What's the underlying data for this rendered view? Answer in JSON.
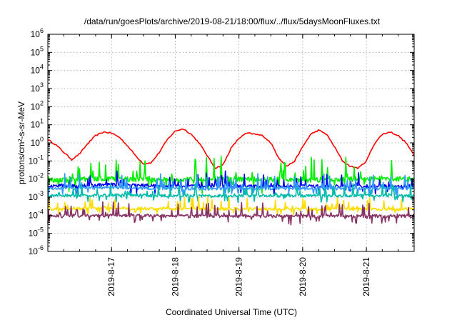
{
  "chart_data": {
    "type": "line",
    "title": "/data/run/goesPlots/archive/2019-08-21/18:00/flux/../flux/5daysMoonFluxes.txt",
    "xlabel": "Coordinated Universal Time (UTC)",
    "ylabel": "protons/cm²-s-sr-MeV",
    "y_scale": "log",
    "ylim": [
      1e-06,
      1000000.0
    ],
    "y_ticks": [
      {
        "base": "10",
        "exp": "-6"
      },
      {
        "base": "10",
        "exp": "-5"
      },
      {
        "base": "10",
        "exp": "-4"
      },
      {
        "base": "10",
        "exp": "-3"
      },
      {
        "base": "10",
        "exp": "-2"
      },
      {
        "base": "10",
        "exp": "-1"
      },
      {
        "base": "10",
        "exp": "0"
      },
      {
        "base": "10",
        "exp": "1"
      },
      {
        "base": "10",
        "exp": "2"
      },
      {
        "base": "10",
        "exp": "3"
      },
      {
        "base": "10",
        "exp": "4"
      },
      {
        "base": "10",
        "exp": "5"
      },
      {
        "base": "10",
        "exp": "6"
      }
    ],
    "xlim": [
      "2019-08-16 00:00",
      "2019-08-21 18:00"
    ],
    "x_ticks": [
      "2019-8-17",
      "2019-8-18",
      "2019-8-19",
      "2019-8-20",
      "2019-8-21"
    ],
    "grid": true,
    "legend": "none",
    "series": [
      {
        "color": "#ff0000",
        "x": [
          "2019-08-16 00:00",
          "2019-08-16 03:00",
          "2019-08-16 06:00",
          "2019-08-16 09:00",
          "2019-08-16 12:00",
          "2019-08-16 15:00",
          "2019-08-16 18:00",
          "2019-08-16 21:00",
          "2019-08-17 00:00",
          "2019-08-17 03:00",
          "2019-08-17 06:00",
          "2019-08-17 09:00",
          "2019-08-17 12:00",
          "2019-08-17 15:00",
          "2019-08-17 18:00",
          "2019-08-17 21:00",
          "2019-08-18 00:00",
          "2019-08-18 03:00",
          "2019-08-18 06:00",
          "2019-08-18 09:00",
          "2019-08-18 12:00",
          "2019-08-18 15:00",
          "2019-08-18 18:00",
          "2019-08-18 21:00",
          "2019-08-19 00:00",
          "2019-08-19 03:00",
          "2019-08-19 06:00",
          "2019-08-19 09:00",
          "2019-08-19 12:00",
          "2019-08-19 15:00",
          "2019-08-19 18:00",
          "2019-08-19 21:00",
          "2019-08-20 00:00",
          "2019-08-20 03:00",
          "2019-08-20 06:00",
          "2019-08-20 09:00",
          "2019-08-20 12:00",
          "2019-08-20 15:00",
          "2019-08-20 18:00",
          "2019-08-20 21:00",
          "2019-08-21 00:00",
          "2019-08-21 03:00",
          "2019-08-21 06:00",
          "2019-08-21 09:00",
          "2019-08-21 12:00",
          "2019-08-21 15:00",
          "2019-08-21 18:00"
        ],
        "y": [
          1.5,
          0.8,
          0.3,
          0.12,
          0.25,
          0.9,
          2.5,
          4,
          3.5,
          2,
          0.7,
          0.2,
          0.07,
          0.08,
          0.3,
          1.5,
          4.5,
          6,
          3,
          1,
          0.2,
          0.04,
          0.06,
          0.5,
          1.8,
          3.5,
          3,
          2.5,
          1,
          0.15,
          0.05,
          0.1,
          0.6,
          3,
          5,
          3,
          0.6,
          0.1,
          0.05,
          0.04,
          0.1,
          0.9,
          3,
          4,
          2.5,
          1,
          0.2
        ]
      },
      {
        "color": "#00ee00",
        "x": [
          "2019-08-16 00:00",
          "2019-08-17 00:00",
          "2019-08-18 00:00",
          "2019-08-19 00:00",
          "2019-08-20 00:00",
          "2019-08-21 00:00",
          "2019-08-21 18:00"
        ],
        "y": [
          0.009,
          0.01,
          0.009,
          0.01,
          0.009,
          0.01,
          0.01
        ]
      },
      {
        "color": "#0000ee",
        "x": [
          "2019-08-16 00:00",
          "2019-08-17 00:00",
          "2019-08-18 00:00",
          "2019-08-19 00:00",
          "2019-08-20 00:00",
          "2019-08-21 00:00",
          "2019-08-21 18:00"
        ],
        "y": [
          0.004,
          0.005,
          0.004,
          0.004,
          0.004,
          0.004,
          0.004
        ]
      },
      {
        "color": "#3399ff",
        "x": [
          "2019-08-16 00:00",
          "2019-08-17 00:00",
          "2019-08-18 00:00",
          "2019-08-19 00:00",
          "2019-08-20 00:00",
          "2019-08-21 00:00",
          "2019-08-21 18:00"
        ],
        "y": [
          0.003,
          0.0035,
          0.003,
          0.003,
          0.003,
          0.003,
          0.003
        ]
      },
      {
        "color": "#00bbaa",
        "x": [
          "2019-08-16 00:00",
          "2019-08-17 00:00",
          "2019-08-18 00:00",
          "2019-08-19 00:00",
          "2019-08-20 00:00",
          "2019-08-21 00:00",
          "2019-08-21 18:00"
        ],
        "y": [
          0.0012,
          0.0013,
          0.0012,
          0.0012,
          0.0012,
          0.0012,
          0.0012
        ]
      },
      {
        "color": "#ffdd00",
        "x": [
          "2019-08-16 00:00",
          "2019-08-17 00:00",
          "2019-08-18 00:00",
          "2019-08-19 00:00",
          "2019-08-20 00:00",
          "2019-08-21 00:00",
          "2019-08-21 18:00"
        ],
        "y": [
          0.00022,
          0.00025,
          0.00022,
          0.00022,
          0.00022,
          0.00022,
          0.00022
        ]
      },
      {
        "color": "#883366",
        "x": [
          "2019-08-16 00:00",
          "2019-08-17 00:00",
          "2019-08-18 00:00",
          "2019-08-19 00:00",
          "2019-08-20 00:00",
          "2019-08-21 00:00",
          "2019-08-21 18:00"
        ],
        "y": [
          9e-05,
          0.0001,
          9e-05,
          9e-05,
          9e-05,
          9e-05,
          9e-05
        ]
      }
    ]
  }
}
